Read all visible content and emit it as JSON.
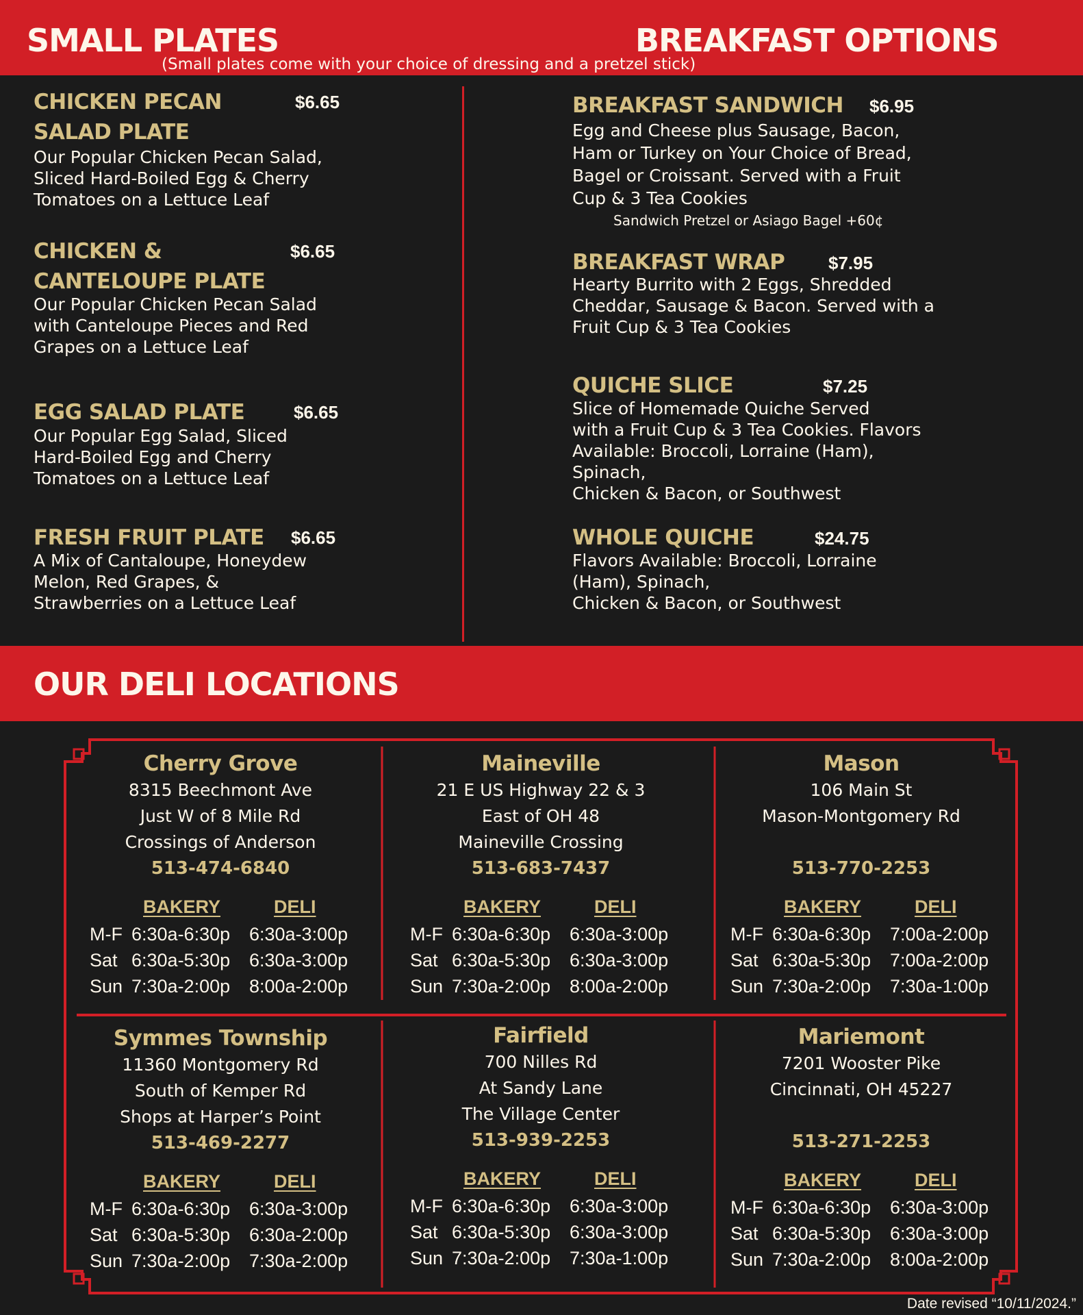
{
  "colors": {
    "red": "#d21f26",
    "background": "#1b1b1b",
    "gold": "#d4bf84",
    "cream": "#fdf6ea"
  },
  "small_plates": {
    "title": "SMALL PLATES",
    "subtitle": "(Small plates come with your choice of dressing and a pretzel stick)",
    "items": [
      {
        "name_lines": [
          "CHICKEN PECAN",
          "SALAD PLATE"
        ],
        "price": "$6.65",
        "description": [
          "Our Popular Chicken Pecan Salad,",
          "Sliced Hard-Boiled Egg & Cherry",
          "Tomatoes on a Lettuce Leaf"
        ]
      },
      {
        "name_lines": [
          "CHICKEN &",
          "CANTELOUPE PLATE"
        ],
        "price": "$6.65",
        "description": [
          "Our Popular Chicken Pecan Salad",
          "with Canteloupe Pieces and Red",
          "Grapes on a Lettuce Leaf"
        ]
      },
      {
        "name_lines": [
          "EGG SALAD PLATE"
        ],
        "price": "$6.65",
        "description": [
          "Our Popular Egg Salad, Sliced",
          "Hard-Boiled Egg and Cherry",
          "Tomatoes on a Lettuce Leaf"
        ]
      },
      {
        "name_lines": [
          "FRESH FRUIT PLATE"
        ],
        "price": "$6.65",
        "description": [
          "A Mix of Cantaloupe, Honeydew",
          "Melon, Red Grapes, &",
          "Strawberries on a Lettuce Leaf"
        ]
      }
    ]
  },
  "breakfast": {
    "title": "BREAKFAST OPTIONS",
    "items": [
      {
        "name": "BREAKFAST SANDWICH",
        "price": "$6.95",
        "description": [
          "Egg and Cheese plus Sausage, Bacon,",
          "Ham or Turkey on Your Choice of Bread,",
          "Bagel or Croissant. Served with a Fruit",
          "Cup & 3 Tea Cookies"
        ],
        "note": "Sandwich Pretzel or Asiago Bagel +60¢"
      },
      {
        "name": "BREAKFAST WRAP",
        "price": "$7.95",
        "description": [
          "Hearty Burrito with 2 Eggs, Shredded",
          "Cheddar, Sausage & Bacon. Served with a",
          "Fruit Cup & 3 Tea Cookies"
        ]
      },
      {
        "name": "QUICHE SLICE",
        "price": "$7.25",
        "description": [
          "Slice of Homemade Quiche Served",
          "with a Fruit Cup & 3 Tea Cookies. Flavors",
          "Available: Broccoli, Lorraine (Ham),",
          "Spinach,",
          "Chicken & Bacon, or Southwest"
        ]
      },
      {
        "name": "WHOLE QUICHE",
        "price": "$24.75",
        "description": [
          "Flavors Available: Broccoli, Lorraine",
          "(Ham), Spinach,",
          "Chicken & Bacon, or Southwest"
        ]
      }
    ]
  },
  "locations": {
    "title": "OUR DELI LOCATIONS",
    "bakery_label": "BAKERY",
    "deli_label": "DELI",
    "list": [
      {
        "name": "Cherry Grove",
        "address": [
          "8315 Beechmont Ave",
          "Just W of 8 Mile Rd",
          "Crossings of Anderson"
        ],
        "phone": "513-474-6840",
        "hours": [
          [
            "M-F",
            "6:30a-6:30p",
            "6:30a-3:00p"
          ],
          [
            "Sat",
            "6:30a-5:30p",
            "6:30a-3:00p"
          ],
          [
            "Sun",
            "7:30a-2:00p",
            "8:00a-2:00p"
          ]
        ]
      },
      {
        "name": "Maineville",
        "address": [
          "21 E US Highway 22 & 3",
          "East of OH 48",
          "Maineville Crossing"
        ],
        "phone": "513-683-7437",
        "hours": [
          [
            "M-F",
            "6:30a-6:30p",
            "6:30a-3:00p"
          ],
          [
            "Sat",
            "6:30a-5:30p",
            "6:30a-3:00p"
          ],
          [
            "Sun",
            "7:30a-2:00p",
            "8:00a-2:00p"
          ]
        ]
      },
      {
        "name": "Mason",
        "address": [
          "106 Main St",
          "Mason-Montgomery Rd"
        ],
        "phone": "513-770-2253",
        "hours": [
          [
            "M-F",
            "6:30a-6:30p",
            "7:00a-2:00p"
          ],
          [
            "Sat",
            "6:30a-5:30p",
            "7:00a-2:00p"
          ],
          [
            "Sun",
            "7:30a-2:00p",
            "7:30a-1:00p"
          ]
        ]
      },
      {
        "name": "Symmes Township",
        "address": [
          "11360 Montgomery Rd",
          "South of Kemper Rd",
          "Shops at Harper’s Point"
        ],
        "phone": "513-469-2277",
        "hours": [
          [
            "M-F",
            "6:30a-6:30p",
            "6:30a-3:00p"
          ],
          [
            "Sat",
            "6:30a-5:30p",
            "6:30a-2:00p"
          ],
          [
            "Sun",
            "7:30a-2:00p",
            "7:30a-2:00p"
          ]
        ]
      },
      {
        "name": "Fairfield",
        "address": [
          "700 Nilles Rd",
          "At Sandy Lane",
          "The Village Center"
        ],
        "phone": "513-939-2253",
        "hours": [
          [
            "M-F",
            "6:30a-6:30p",
            "6:30a-3:00p"
          ],
          [
            "Sat",
            "6:30a-5:30p",
            "6:30a-3:00p"
          ],
          [
            "Sun",
            "7:30a-2:00p",
            "7:30a-1:00p"
          ]
        ]
      },
      {
        "name": "Mariemont",
        "address": [
          "7201 Wooster Pike",
          "Cincinnati, OH 45227"
        ],
        "phone": "513-271-2253",
        "hours": [
          [
            "M-F",
            "6:30a-6:30p",
            "6:30a-3:00p"
          ],
          [
            "Sat",
            "6:30a-5:30p",
            "6:30a-3:00p"
          ],
          [
            "Sun",
            "7:30a-2:00p",
            "8:00a-2:00p"
          ]
        ]
      }
    ]
  },
  "footer": {
    "date_revised": "Date revised “10/11/2024.”"
  }
}
